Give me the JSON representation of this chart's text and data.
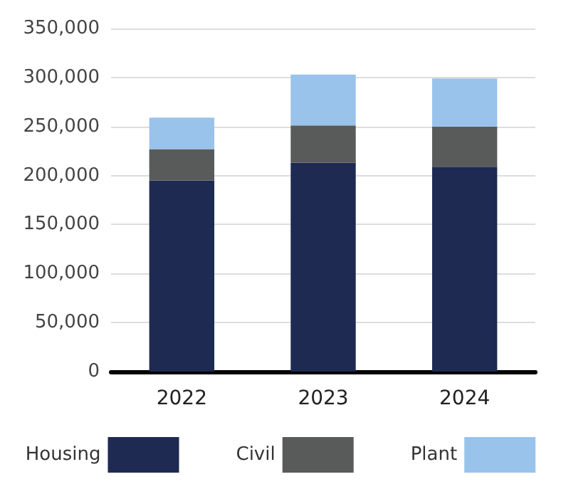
{
  "chart_data": {
    "type": "bar",
    "stacked": true,
    "categories": [
      "2022",
      "2023",
      "2024"
    ],
    "series": [
      {
        "name": "Housing",
        "color": "#1e2a52",
        "values": [
          195000,
          213000,
          209000
        ]
      },
      {
        "name": "Civil",
        "color": "#595b5a",
        "values": [
          32000,
          38000,
          41000
        ]
      },
      {
        "name": "Plant",
        "color": "#99c3eb",
        "values": [
          32000,
          52000,
          49000
        ]
      }
    ],
    "ylim": [
      0,
      350000
    ],
    "yticks": [
      0,
      {
        "value": 50000,
        "label": "50,000"
      },
      {
        "value": 100000,
        "label": "100,000"
      },
      {
        "value": 150000,
        "label": "150,000"
      },
      {
        "value": 200000,
        "label": "200,000"
      },
      {
        "value": 250000,
        "label": "250,000"
      },
      {
        "value": 300000,
        "label": "300,000"
      },
      {
        "value": 350000,
        "label": "350,000"
      }
    ],
    "grid": "y",
    "legend": "bottom"
  }
}
